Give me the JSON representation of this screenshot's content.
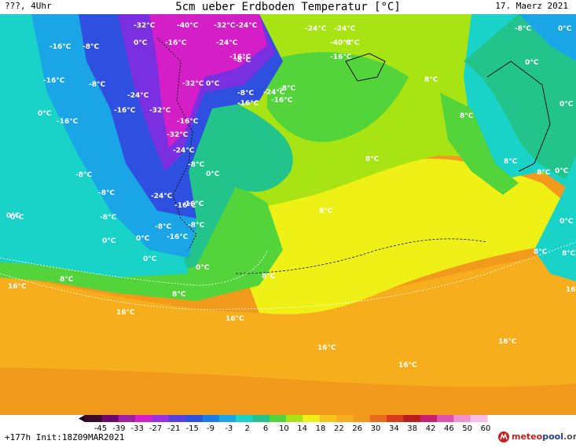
{
  "header": {
    "left": "???, 4Uhr",
    "title": "5cm ueber Erdboden Temperatur [°C]",
    "right": "17. Maerz 2021"
  },
  "footer": {
    "init": "+177h Init:18Z09MAR2021",
    "logo_text_1": "meteo",
    "logo_text_2": "pool",
    "logo_text_3": ".org"
  },
  "colors": {
    "sea_warm": "#f29a1b",
    "sea_mid": "#f7b21a",
    "yellow": "#eef016",
    "lime": "#a8e414",
    "green": "#52d43a",
    "teal": "#22c48c",
    "cyan": "#19d2c8",
    "skyblue": "#1aa6e6",
    "blue": "#2f4fe0",
    "violet": "#7a2fe0",
    "magenta": "#d41ec8"
  },
  "legend": {
    "ticks": [
      "-45",
      "-39",
      "-33",
      "-27",
      "-21",
      "-15",
      "-9",
      "-3",
      "2",
      "6",
      "10",
      "14",
      "18",
      "22",
      "26",
      "30",
      "34",
      "38",
      "42",
      "46",
      "50",
      "60"
    ]
  },
  "labels": [
    {
      "text": "-32°C"
    },
    {
      "text": "-40°C"
    },
    {
      "text": "-32°C"
    },
    {
      "text": "-24°C"
    },
    {
      "text": "-24°C"
    },
    {
      "text": "-24°C"
    },
    {
      "text": "-16°C"
    },
    {
      "text": "-8°C"
    },
    {
      "text": "0°C"
    },
    {
      "text": "-16°C"
    },
    {
      "text": "-24°C"
    },
    {
      "text": "-40°C"
    },
    {
      "text": "-16°C"
    },
    {
      "text": "-16°C"
    },
    {
      "text": "-8°C"
    },
    {
      "text": "0°C"
    },
    {
      "text": "-8°C"
    },
    {
      "text": "0°C"
    },
    {
      "text": "-16°C"
    },
    {
      "text": "-8°C"
    },
    {
      "text": "-32°C"
    },
    {
      "text": "0°C"
    },
    {
      "text": "-8°C"
    },
    {
      "text": "-24°C"
    },
    {
      "text": "-8°C"
    },
    {
      "text": "-24°C"
    },
    {
      "text": "-16°C"
    },
    {
      "text": "-16°C"
    },
    {
      "text": "-32°C"
    },
    {
      "text": "-16°C"
    },
    {
      "text": "-16°C"
    },
    {
      "text": "0°C"
    },
    {
      "text": "8°C"
    },
    {
      "text": "0°C"
    },
    {
      "text": "-16°C"
    },
    {
      "text": "-32°C"
    },
    {
      "text": "8°C"
    },
    {
      "text": "0°C"
    },
    {
      "text": "-24°C"
    },
    {
      "text": "-8°C"
    },
    {
      "text": "0°C"
    },
    {
      "text": "8°C"
    },
    {
      "text": "8°C"
    },
    {
      "text": "-8°C"
    },
    {
      "text": "0°C"
    },
    {
      "text": "8°C"
    },
    {
      "text": "-24°C"
    },
    {
      "text": "-16°C"
    },
    {
      "text": "-16°C"
    },
    {
      "text": "-8°C"
    },
    {
      "text": "0°C"
    },
    {
      "text": "8°C"
    },
    {
      "text": "-8°C"
    },
    {
      "text": "-8°C"
    },
    {
      "text": "-8°C"
    },
    {
      "text": "0°C"
    },
    {
      "text": "0°C"
    },
    {
      "text": "-16°C"
    },
    {
      "text": "0°C"
    },
    {
      "text": "8°C"
    },
    {
      "text": "0°C"
    },
    {
      "text": "0°C"
    },
    {
      "text": "0°C"
    },
    {
      "text": "8°C"
    },
    {
      "text": "8°C"
    },
    {
      "text": "16°C"
    },
    {
      "text": "8°C"
    },
    {
      "text": "8°C"
    },
    {
      "text": "16°C"
    },
    {
      "text": "16°C"
    },
    {
      "text": "16°C"
    },
    {
      "text": "16°C"
    },
    {
      "text": "16°C"
    },
    {
      "text": "16°C"
    }
  ]
}
